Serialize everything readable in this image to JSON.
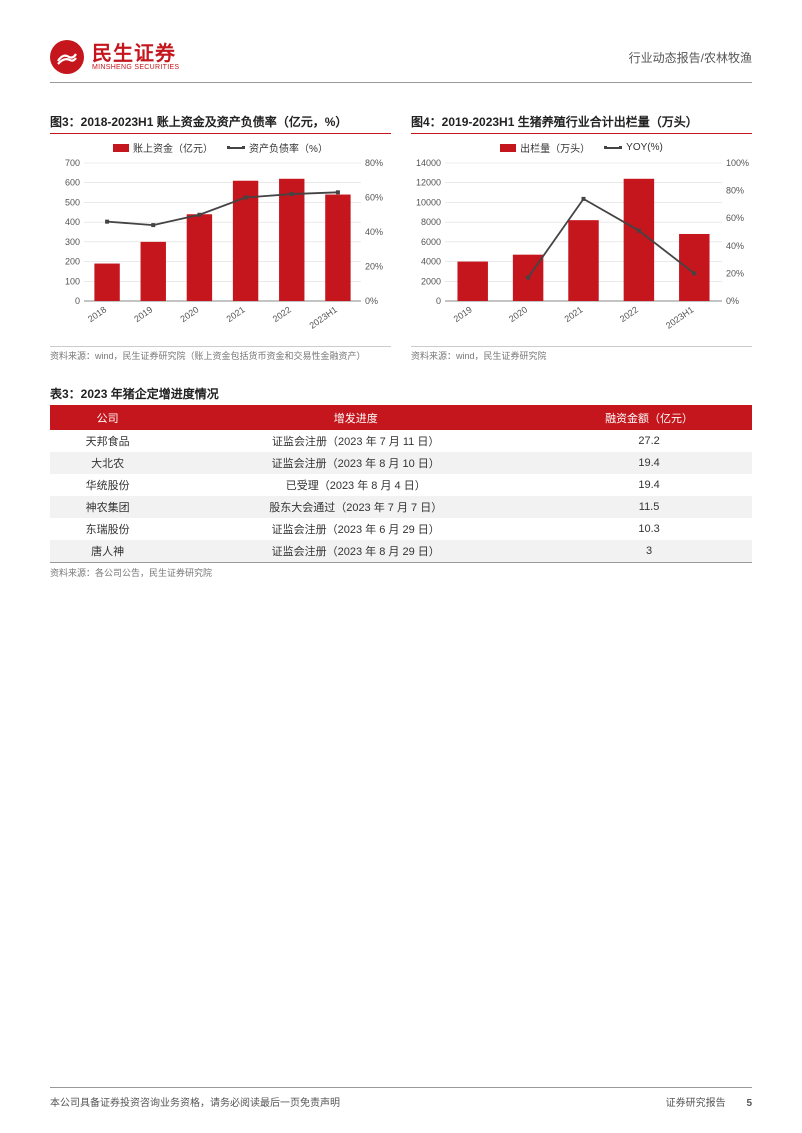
{
  "header": {
    "logo_cn": "民生证券",
    "logo_en": "MINSHENG SECURITIES",
    "breadcrumb": "行业动态报告/农林牧渔"
  },
  "chart3": {
    "type": "bar+line",
    "title": "图3：2018-2023H1 账上资金及资产负债率（亿元，%）",
    "legend_bar": "账上资金（亿元）",
    "legend_line": "资产负债率（%）",
    "categories": [
      "2018",
      "2019",
      "2020",
      "2021",
      "2022",
      "2023H1"
    ],
    "bar_values": [
      190,
      300,
      440,
      610,
      620,
      540
    ],
    "line_values": [
      46,
      44,
      50,
      60,
      62,
      63
    ],
    "y1_max": 700,
    "y1_step": 100,
    "y2_max": 80,
    "y2_step": 20,
    "bar_color": "#c4161c",
    "line_color": "#444444",
    "grid_color": "#dddddd",
    "axis_color": "#888888",
    "label_fontsize": 9,
    "source": "资料来源：wind，民生证券研究院（账上资金包括货币资金和交易性金融资产）"
  },
  "chart4": {
    "type": "bar+line",
    "title": "图4：2019-2023H1 生猪养殖行业合计出栏量（万头）",
    "legend_bar": "出栏量（万头）",
    "legend_line": "YOY(%)",
    "categories": [
      "2019",
      "2020",
      "2021",
      "2022",
      "2023H1"
    ],
    "bar_values": [
      4000,
      4700,
      8200,
      12400,
      6800
    ],
    "line_values": [
      null,
      17,
      74,
      51,
      20
    ],
    "y1_max": 14000,
    "y1_step": 2000,
    "y2_max": 100,
    "y2_step": 20,
    "bar_color": "#c4161c",
    "line_color": "#444444",
    "grid_color": "#dddddd",
    "axis_color": "#888888",
    "label_fontsize": 9,
    "source": "资料来源：wind，民生证券研究院"
  },
  "table": {
    "title": "表3：2023 年猪企定增进度情况",
    "columns": [
      "公司",
      "增发进度",
      "融资金额（亿元）"
    ],
    "rows": [
      [
        "天邦食品",
        "证监会注册（2023 年 7 月 11 日）",
        "27.2"
      ],
      [
        "大北农",
        "证监会注册（2023 年 8 月 10 日）",
        "19.4"
      ],
      [
        "华统股份",
        "已受理（2023 年 8 月 4 日）",
        "19.4"
      ],
      [
        "神农集团",
        "股东大会通过（2023 年 7 月 7 日）",
        "11.5"
      ],
      [
        "东瑞股份",
        "证监会注册（2023 年 6 月 29 日）",
        "10.3"
      ],
      [
        "唐人神",
        "证监会注册（2023 年 8 月 29 日）",
        "3"
      ]
    ],
    "header_bg": "#c4161c",
    "header_color": "#ffffff",
    "row_alt_bg": "#f2f2f2",
    "source": "资料来源：各公司公告，民生证券研究院"
  },
  "footer": {
    "left": "本公司具备证券投资咨询业务资格，请务必阅读最后一页免责声明",
    "right": "证券研究报告",
    "page": "5"
  }
}
